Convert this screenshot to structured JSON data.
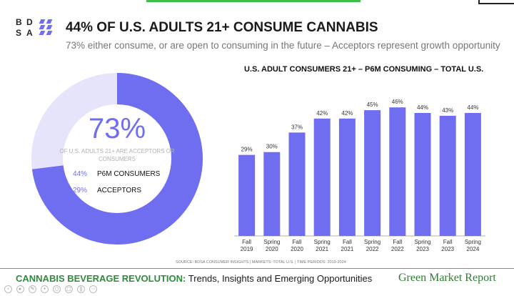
{
  "logo": {
    "letters": [
      "B",
      "D",
      "S",
      "A"
    ]
  },
  "header": {
    "title": "44% OF U.S. ADULTS 21+ CONSUME CANNABIS",
    "subtitle": "73% either consume, or are open to consuming in the future – Acceptors represent growth opportunity"
  },
  "donut": {
    "total_label": "73%",
    "caption": "OF U.S. ADULTS 21+ ARE ACCEPTORS OR CONSUMERS",
    "segments": [
      {
        "label": "P6M CONSUMERS",
        "value": 44,
        "display": "44%",
        "color": "#6f6ef0"
      },
      {
        "label": "ACCEPTORS",
        "value": 29,
        "display": "29%",
        "color": "#6f6ef0"
      }
    ],
    "remainder_color": "#e6e4fb"
  },
  "chart_data": {
    "type": "bar",
    "title": "U.S. ADULT CONSUMERS 21+ – P6M CONSUMING – TOTAL U.S.",
    "categories": [
      [
        "Fall",
        "2019"
      ],
      [
        "Spring",
        "2020"
      ],
      [
        "Fall",
        "2020"
      ],
      [
        "Spring",
        "2021"
      ],
      [
        "Fall",
        "2021"
      ],
      [
        "Spring",
        "2022"
      ],
      [
        "Fall",
        "2022"
      ],
      [
        "Spring",
        "2023"
      ],
      [
        "Fall",
        "2023"
      ],
      [
        "Spring",
        "2024"
      ]
    ],
    "values": [
      29,
      30,
      37,
      42,
      42,
      45,
      46,
      44,
      43,
      44
    ],
    "labels": [
      "29%",
      "30%",
      "37%",
      "42%",
      "42%",
      "45%",
      "46%",
      "44%",
      "43%",
      "44%"
    ],
    "ylim": [
      0,
      55
    ],
    "bar_color": "#6f6ef0"
  },
  "source": "SOURCE: BDSA CONSUMER INSIGHTS  |  MARKETS: TOTAL U.S.  |  TIME PERIODS: 2019-2024",
  "footer": {
    "highlight": "CANNABIS BEVERAGE REVOLUTION:",
    "rest": " Trends, Insights and Emerging Opportunities",
    "brand": "Green Market Report"
  },
  "controls": [
    "prev",
    "play",
    "edit",
    "pointer",
    "zoom",
    "copy",
    "pause",
    "more"
  ]
}
